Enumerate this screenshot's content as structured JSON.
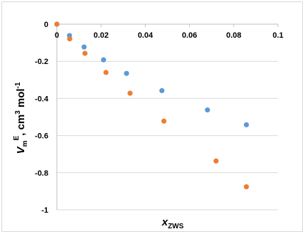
{
  "chart_data": {
    "type": "scatter",
    "title": "",
    "xlabel": {
      "main": "x",
      "sub": "ZWS"
    },
    "ylabel": {
      "main": "V",
      "sub": "m",
      "sup": "E",
      "rest": ", cm",
      "unit_sup": "3",
      "rest2": " mol",
      "unit_sup2": "-1"
    },
    "xlim": [
      0,
      0.1
    ],
    "ylim": [
      -1,
      0
    ],
    "x_ticks": [
      "0",
      "0.02",
      "0.04",
      "0.06",
      "0.08",
      "0.1"
    ],
    "y_ticks": [
      "0",
      "-0.2",
      "-0.4",
      "-0.6",
      "-0.8",
      "-1"
    ],
    "x_tick_values": [
      0,
      0.02,
      0.04,
      0.06,
      0.08,
      0.1
    ],
    "y_tick_values": [
      0,
      -0.2,
      -0.4,
      -0.6,
      -0.8,
      -1
    ],
    "grid": "horizontal",
    "legend": "none",
    "series": [
      {
        "color": "#5b9bd5",
        "points": [
          [
            0,
            0
          ],
          [
            0.0057,
            -0.061
          ],
          [
            0.0123,
            -0.123
          ],
          [
            0.0211,
            -0.192
          ],
          [
            0.0315,
            -0.265
          ],
          [
            0.0475,
            -0.358
          ],
          [
            0.0681,
            -0.462
          ],
          [
            0.0857,
            -0.542
          ]
        ]
      },
      {
        "color": "#ed7d31",
        "points": [
          [
            0,
            0
          ],
          [
            0.0058,
            -0.079
          ],
          [
            0.0127,
            -0.157
          ],
          [
            0.0222,
            -0.26
          ],
          [
            0.0331,
            -0.372
          ],
          [
            0.0484,
            -0.522
          ],
          [
            0.072,
            -0.737
          ],
          [
            0.0857,
            -0.876
          ]
        ]
      }
    ]
  }
}
